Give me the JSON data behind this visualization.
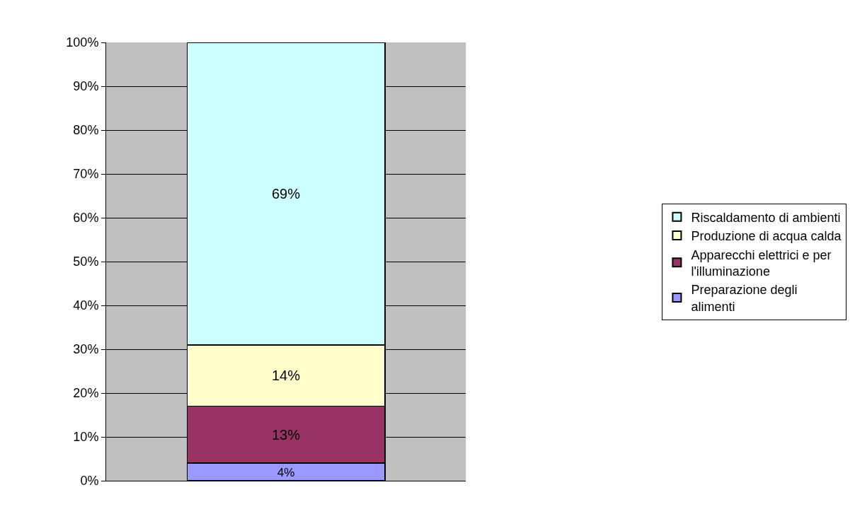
{
  "chart_data": {
    "type": "bar",
    "stacked": true,
    "categories": [
      null
    ],
    "series": [
      {
        "name": "Preparazione degli alimenti",
        "color": "#9999ff",
        "values": [
          4
        ],
        "value_labels": [
          "4%"
        ]
      },
      {
        "name": "Apparecchi elettrici e per l'illuminazione",
        "color": "#993366",
        "values": [
          13
        ],
        "value_labels": [
          "13%"
        ]
      },
      {
        "name": "Produzione di acqua calda",
        "color": "#ffffcc",
        "values": [
          14
        ],
        "value_labels": [
          "14%"
        ]
      },
      {
        "name": "Riscaldamento di ambienti",
        "color": "#ccffff",
        "values": [
          69
        ],
        "value_labels": [
          "69%"
        ]
      }
    ],
    "ylim": [
      0,
      100
    ],
    "yticks": [
      {
        "value": 0,
        "label": "0%"
      },
      {
        "value": 10,
        "label": "10%"
      },
      {
        "value": 20,
        "label": "20%"
      },
      {
        "value": 30,
        "label": "30%"
      },
      {
        "value": 40,
        "label": "40%"
      },
      {
        "value": 50,
        "label": "50%"
      },
      {
        "value": 60,
        "label": "60%"
      },
      {
        "value": 70,
        "label": "70%"
      },
      {
        "value": 80,
        "label": "80%"
      },
      {
        "value": 90,
        "label": "90%"
      },
      {
        "value": 100,
        "label": "100%"
      }
    ],
    "grid": "y",
    "legend": "right"
  }
}
